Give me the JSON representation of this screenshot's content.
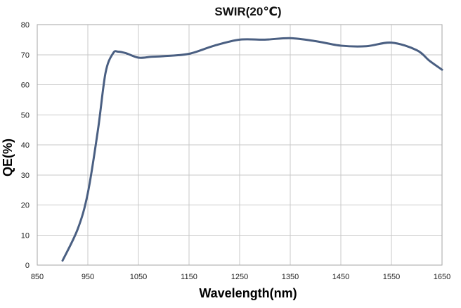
{
  "chart_data": {
    "type": "line",
    "title": "SWIR(20℃)",
    "xlabel": "Wavelength(nm)",
    "ylabel": "QE(%)",
    "xlim": [
      850,
      1650
    ],
    "ylim": [
      0,
      80
    ],
    "xticks": [
      "850",
      "950",
      "1050",
      "1150",
      "1250",
      "1350",
      "1450",
      "1550",
      "1650"
    ],
    "yticks": [
      "0",
      "10",
      "20",
      "30",
      "40",
      "50",
      "60",
      "70",
      "80"
    ],
    "grid": true,
    "legend": "none",
    "series": [
      {
        "color": "#4a5f82",
        "x": [
          900,
          930,
          950,
          970,
          985,
          1000,
          1010,
          1025,
          1050,
          1075,
          1100,
          1150,
          1200,
          1250,
          1300,
          1350,
          1400,
          1450,
          1500,
          1550,
          1600,
          1625,
          1650
        ],
        "y": [
          1.5,
          12,
          24,
          45,
          64,
          70.5,
          71,
          70.5,
          69,
          69.3,
          69.5,
          70.3,
          73,
          75,
          75,
          75.5,
          74.5,
          73,
          72.8,
          74,
          71.5,
          68,
          65
        ]
      }
    ]
  }
}
